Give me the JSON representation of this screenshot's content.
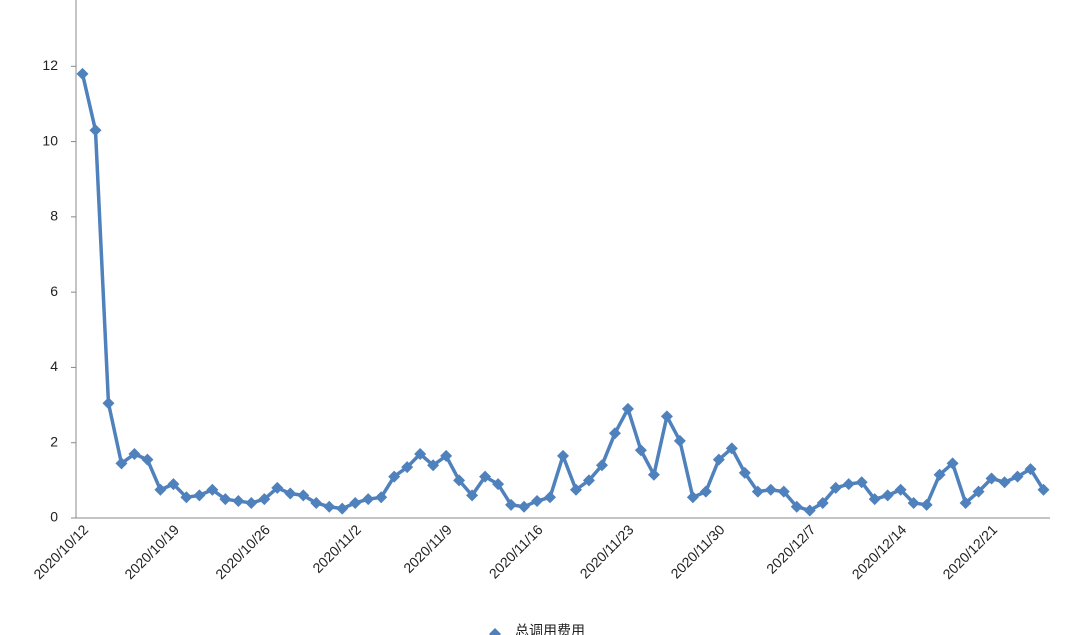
{
  "chart_data": {
    "type": "line",
    "categories": [
      "2020/10/12",
      null,
      null,
      null,
      null,
      null,
      null,
      "2020/10/19",
      null,
      null,
      null,
      null,
      null,
      null,
      "2020/10/26",
      null,
      null,
      null,
      null,
      null,
      null,
      "2020/11/2",
      null,
      null,
      null,
      null,
      null,
      null,
      "2020/11/9",
      null,
      null,
      null,
      null,
      null,
      null,
      "2020/11/16",
      null,
      null,
      null,
      null,
      null,
      null,
      "2020/11/23",
      null,
      null,
      null,
      null,
      null,
      null,
      "2020/11/30",
      null,
      null,
      null,
      null,
      null,
      null,
      "2020/12/7",
      null,
      null,
      null,
      null,
      null,
      null,
      "2020/12/14",
      null,
      null,
      null,
      null,
      null,
      null,
      "2020/12/21",
      null,
      null,
      null,
      null
    ],
    "series": [
      {
        "name": "总调用费用",
        "color": "#4f81bd",
        "values": [
          11.8,
          10.3,
          3.05,
          1.45,
          1.7,
          1.55,
          0.75,
          0.9,
          0.55,
          0.6,
          0.75,
          0.5,
          0.45,
          0.4,
          0.5,
          0.8,
          0.65,
          0.6,
          0.4,
          0.3,
          0.25,
          0.4,
          0.5,
          0.55,
          1.1,
          1.35,
          1.7,
          1.4,
          1.65,
          1.0,
          0.6,
          1.1,
          0.9,
          0.35,
          0.3,
          0.45,
          0.55,
          1.65,
          0.75,
          1.0,
          1.4,
          2.25,
          2.9,
          1.8,
          1.15,
          2.7,
          2.05,
          0.55,
          0.7,
          1.55,
          1.85,
          1.2,
          0.7,
          0.75,
          0.7,
          0.3,
          0.2,
          0.4,
          0.8,
          0.9,
          0.95,
          0.5,
          0.6,
          0.75,
          0.4,
          0.35,
          1.15,
          1.45,
          0.4,
          0.7,
          1.05,
          0.95,
          1.1,
          1.3,
          0.75
        ]
      }
    ],
    "ylim": [
      0,
      14
    ],
    "yticks": [
      0,
      2,
      4,
      6,
      8,
      10,
      12
    ],
    "grid": false,
    "legend": "bottom"
  }
}
